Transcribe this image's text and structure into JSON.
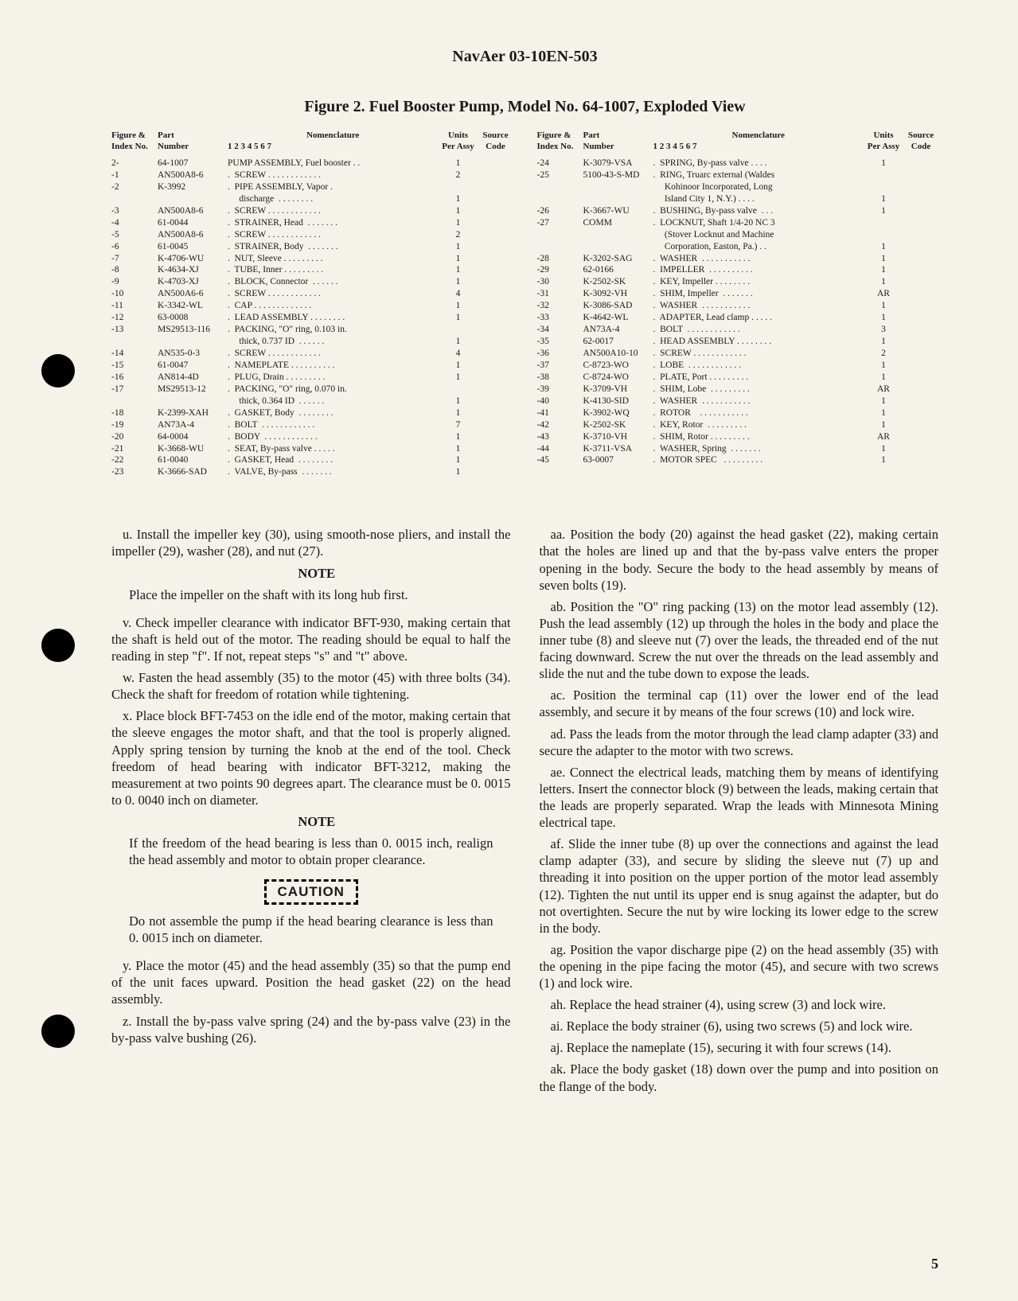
{
  "header": "NavAer 03-10EN-503",
  "figure_title": "Figure 2.  Fuel Booster Pump, Model No. 64-1007, Exploded View",
  "table_header": {
    "c1a": "Figure &",
    "c1b": "Index No.",
    "c2a": "Part",
    "c2b": "Number",
    "c3a": "Nomenclature",
    "c3b": "1 2 3 4 5 6 7",
    "c4a": "Units",
    "c4b": "Per Assy",
    "c5a": "Source",
    "c5b": "Code"
  },
  "left_rows": [
    {
      "idx": "2-",
      "pn": "64-1007",
      "nom": "PUMP ASSEMBLY, Fuel booster . .",
      "u": "1",
      "s": ""
    },
    {
      "idx": "-1",
      "pn": "AN500A8-6",
      "nom": ".  SCREW . . . . . . . . . . . .",
      "u": "2",
      "s": ""
    },
    {
      "idx": "-2",
      "pn": "K-3992",
      "nom": ".  PIPE ASSEMBLY, Vapor .",
      "u": "",
      "s": ""
    },
    {
      "idx": "",
      "pn": "",
      "nom": "     discharge  . . . . . . . .",
      "u": "1",
      "s": ""
    },
    {
      "idx": "-3",
      "pn": "AN500A8-6",
      "nom": ".  SCREW . . . . . . . . . . . .",
      "u": "1",
      "s": ""
    },
    {
      "idx": "-4",
      "pn": "61-0044",
      "nom": ".  STRAINER, Head  . . . . . . .",
      "u": "1",
      "s": ""
    },
    {
      "idx": "-5",
      "pn": "AN500A8-6",
      "nom": ".  SCREW . . . . . . . . . . . .",
      "u": "2",
      "s": ""
    },
    {
      "idx": "-6",
      "pn": "61-0045",
      "nom": ".  STRAINER, Body  . . . . . . .",
      "u": "1",
      "s": ""
    },
    {
      "idx": "-7",
      "pn": "K-4706-WU",
      "nom": ".  NUT, Sleeve . . . . . . . . .",
      "u": "1",
      "s": ""
    },
    {
      "idx": "-8",
      "pn": "K-4634-XJ",
      "nom": ".  TUBE, Inner . . . . . . . . .",
      "u": "1",
      "s": ""
    },
    {
      "idx": "-9",
      "pn": "K-4703-XJ",
      "nom": ".  BLOCK, Connector  . . . . . .",
      "u": "1",
      "s": ""
    },
    {
      "idx": "-10",
      "pn": "AN500A6-6",
      "nom": ".  SCREW . . . . . . . . . . . .",
      "u": "4",
      "s": ""
    },
    {
      "idx": "-11",
      "pn": "K-3342-WL",
      "nom": ".  CAP . . . . . . . . . . . . .",
      "u": "1",
      "s": ""
    },
    {
      "idx": "-12",
      "pn": "63-0008",
      "nom": ".  LEAD ASSEMBLY . . . . . . . .",
      "u": "1",
      "s": ""
    },
    {
      "idx": "-13",
      "pn": "MS29513-116",
      "nom": ".  PACKING, \"O\" ring, 0.103 in.",
      "u": "",
      "s": ""
    },
    {
      "idx": "",
      "pn": "",
      "nom": "     thick, 0.737 ID  . . . . . .",
      "u": "1",
      "s": ""
    },
    {
      "idx": "-14",
      "pn": "AN535-0-3",
      "nom": ".  SCREW . . . . . . . . . . . .",
      "u": "4",
      "s": ""
    },
    {
      "idx": "-15",
      "pn": "61-0047",
      "nom": ".  NAMEPLATE . . . . . . . . . .",
      "u": "1",
      "s": ""
    },
    {
      "idx": "-16",
      "pn": "AN814-4D",
      "nom": ".  PLUG, Drain . . . . . . . . .",
      "u": "1",
      "s": ""
    },
    {
      "idx": "-17",
      "pn": "MS29513-12",
      "nom": ".  PACKING, \"O\" ring, 0.070 in.",
      "u": "",
      "s": ""
    },
    {
      "idx": "",
      "pn": "",
      "nom": "     thick, 0.364 ID  . . . . . .",
      "u": "1",
      "s": ""
    },
    {
      "idx": "-18",
      "pn": "K-2399-XAH",
      "nom": ".  GASKET, Body  . . . . . . . .",
      "u": "1",
      "s": ""
    },
    {
      "idx": "-19",
      "pn": "AN73A-4",
      "nom": ".  BOLT  . . . . . . . . . . . .",
      "u": "7",
      "s": ""
    },
    {
      "idx": "-20",
      "pn": "64-0004",
      "nom": ".  BODY  . . . . . . . . . . . .",
      "u": "1",
      "s": ""
    },
    {
      "idx": "-21",
      "pn": "K-3668-WU",
      "nom": ".  SEAT, By-pass valve . . . . .",
      "u": "1",
      "s": ""
    },
    {
      "idx": "-22",
      "pn": "61-0040",
      "nom": ".  GASKET, Head  . . . . . . . .",
      "u": "1",
      "s": ""
    },
    {
      "idx": "-23",
      "pn": "K-3666-SAD",
      "nom": ".  VALVE, By-pass  . . . . . . .",
      "u": "1",
      "s": ""
    }
  ],
  "right_rows": [
    {
      "idx": "-24",
      "pn": "K-3079-VSA",
      "nom": ".  SPRING, By-pass valve . . . .",
      "u": "1",
      "s": ""
    },
    {
      "idx": "-25",
      "pn": "5100-43-S-MD",
      "nom": ".  RING, Truarc external (Waldes",
      "u": "",
      "s": ""
    },
    {
      "idx": "",
      "pn": "",
      "nom": "     Kohinoor Incorporated, Long",
      "u": "",
      "s": ""
    },
    {
      "idx": "",
      "pn": "",
      "nom": "     Island City 1, N.Y.) . . . .",
      "u": "1",
      "s": ""
    },
    {
      "idx": "-26",
      "pn": "K-3667-WU",
      "nom": ".  BUSHING, By-pass valve  . . .",
      "u": "1",
      "s": ""
    },
    {
      "idx": "-27",
      "pn": "COMM",
      "nom": ".  LOCKNUT, Shaft 1/4-20 NC 3",
      "u": "",
      "s": ""
    },
    {
      "idx": "",
      "pn": "",
      "nom": "     (Stover Locknut and Machine",
      "u": "",
      "s": ""
    },
    {
      "idx": "",
      "pn": "",
      "nom": "     Corporation, Easton, Pa.) . .",
      "u": "1",
      "s": ""
    },
    {
      "idx": "-28",
      "pn": "K-3202-SAG",
      "nom": ".  WASHER  . . . . . . . . . . .",
      "u": "1",
      "s": ""
    },
    {
      "idx": "-29",
      "pn": "62-0166",
      "nom": ".  IMPELLER  . . . . . . . . . .",
      "u": "1",
      "s": ""
    },
    {
      "idx": "-30",
      "pn": "K-2502-SK",
      "nom": ".  KEY, Impeller . . . . . . . .",
      "u": "1",
      "s": ""
    },
    {
      "idx": "-31",
      "pn": "K-3092-VH",
      "nom": ".  SHIM, Impeller  . . . . . . .",
      "u": "AR",
      "s": ""
    },
    {
      "idx": "-32",
      "pn": "K-3086-SAD",
      "nom": ".  WASHER  . . . . . . . . . . .",
      "u": "1",
      "s": ""
    },
    {
      "idx": "-33",
      "pn": "K-4642-WL",
      "nom": ".  ADAPTER, Lead clamp . . . . .",
      "u": "1",
      "s": ""
    },
    {
      "idx": "-34",
      "pn": "AN73A-4",
      "nom": ".  BOLT  . . . . . . . . . . . .",
      "u": "3",
      "s": ""
    },
    {
      "idx": "-35",
      "pn": "62-0017",
      "nom": ".  HEAD ASSEMBLY . . . . . . . .",
      "u": "1",
      "s": ""
    },
    {
      "idx": "-36",
      "pn": "AN500A10-10",
      "nom": ".  SCREW . . . . . . . . . . . .",
      "u": "2",
      "s": ""
    },
    {
      "idx": "-37",
      "pn": "C-8723-WO",
      "nom": ".  LOBE  . . . . . . . . . . . .",
      "u": "1",
      "s": ""
    },
    {
      "idx": "-38",
      "pn": "C-8724-WO",
      "nom": ".  PLATE, Port . . . . . . . . .",
      "u": "1",
      "s": ""
    },
    {
      "idx": "-39",
      "pn": "K-3709-VH",
      "nom": ".  SHIM, Lobe  . . . . . . . . .",
      "u": "AR",
      "s": ""
    },
    {
      "idx": "-40",
      "pn": "K-4130-SID",
      "nom": ".  WASHER  . . . . . . . . . . .",
      "u": "1",
      "s": ""
    },
    {
      "idx": "-41",
      "pn": "K-3902-WQ",
      "nom": ".  ROTOR    . . . . . . . . . . .",
      "u": "1",
      "s": ""
    },
    {
      "idx": "-42",
      "pn": "K-2502-SK",
      "nom": ".  KEY, Rotor  . . . . . . . . .",
      "u": "1",
      "s": ""
    },
    {
      "idx": "-43",
      "pn": "K-3710-VH",
      "nom": ".  SHIM, Rotor . . . . . . . . .",
      "u": "AR",
      "s": ""
    },
    {
      "idx": "-44",
      "pn": "K-3711-VSA",
      "nom": ".  WASHER, Spring  . . . . . . .",
      "u": "1",
      "s": ""
    },
    {
      "idx": "-45",
      "pn": "63-0007",
      "nom": ".  MOTOR SPEC   . . . . . . . . .",
      "u": "1",
      "s": ""
    }
  ],
  "left_body": {
    "p_u": "u. Install the impeller key (30), using smooth-nose pliers, and install the impeller (29), washer (28), and nut (27).",
    "note1_h": "NOTE",
    "note1_b": "Place the impeller on the shaft with its long hub first.",
    "p_v": "v. Check impeller clearance with indicator BFT-930, making certain that the shaft is held out of the motor. The reading should be equal to half the reading in step \"f\". If not, repeat steps \"s\" and \"t\" above.",
    "p_w": "w. Fasten the head assembly (35) to the motor (45) with three bolts (34). Check the shaft for freedom of rotation while tightening.",
    "p_x": "x. Place block BFT-7453 on the idle end of the motor, making certain that the sleeve engages the motor shaft, and that the tool is properly aligned. Apply spring tension by turning the knob at the end of the tool. Check freedom of head bearing with indicator BFT-3212, making the measurement at two points 90 degrees apart. The clearance must be 0. 0015 to 0. 0040 inch on diameter.",
    "note2_h": "NOTE",
    "note2_b": "If the freedom of the head bearing is less than 0. 0015 inch, realign the head assembly and motor to obtain proper clearance.",
    "caution": "CAUTION",
    "caution_b": "Do not assemble the pump if the head bearing clearance is less than 0. 0015 inch on diameter.",
    "p_y": "y. Place the motor (45) and the head assembly (35) so that the pump end of the unit faces upward. Position the head gasket (22) on the head assembly.",
    "p_z": "z. Install the by-pass valve spring (24) and the by-pass valve (23) in the by-pass valve bushing (26)."
  },
  "right_body": {
    "p_aa": "aa. Position the body (20) against the head gasket (22), making certain that the holes are lined up and that the by-pass valve enters the proper opening in the body. Secure the body to the head assembly by means of seven bolts (19).",
    "p_ab": "ab. Position the \"O\" ring packing (13) on the motor lead assembly (12). Push the lead assembly (12) up through the holes in the body and place the inner tube (8) and sleeve nut (7) over the leads, the threaded end of the nut facing downward. Screw the nut over the threads on the lead assembly and slide the nut and the tube down to expose the leads.",
    "p_ac": "ac. Position the terminal cap (11) over the lower end of the lead assembly, and secure it by means of the four screws (10) and lock wire.",
    "p_ad": "ad. Pass the leads from the motor through the lead clamp adapter (33) and secure the adapter to the motor with two screws.",
    "p_ae": "ae. Connect the electrical leads, matching them by means of identifying letters. Insert the connector block (9) between the leads, making certain that the leads are properly separated. Wrap the leads with Minnesota Mining electrical tape.",
    "p_af": "af. Slide the inner tube (8) up over the connections and against the lead clamp adapter (33), and secure by sliding the sleeve nut (7) up and threading it into position on the upper portion of the motor lead assembly (12). Tighten the nut until its upper end is snug against the adapter, but do not overtighten. Secure the nut by wire locking its lower edge to the screw in the body.",
    "p_ag": "ag. Position the vapor discharge pipe (2) on the head assembly (35) with the opening in the pipe facing the motor (45), and secure with two screws (1) and lock wire.",
    "p_ah": "ah. Replace the head strainer (4), using screw (3) and lock wire.",
    "p_ai": "ai. Replace the body strainer (6), using two screws (5) and lock wire.",
    "p_aj": "aj. Replace the nameplate (15), securing it with four screws (14).",
    "p_ak": "ak. Place the body gasket (18) down over the pump and into position on the flange of the body."
  },
  "pagenum": "5"
}
